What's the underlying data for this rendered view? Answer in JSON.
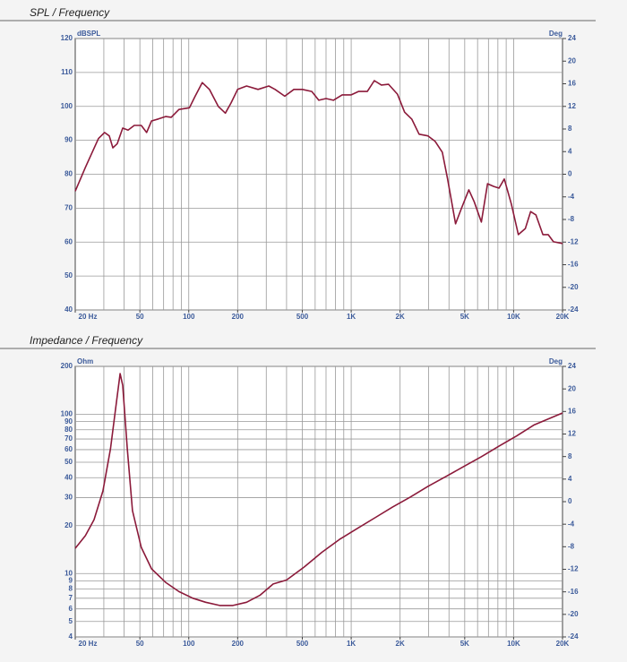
{
  "chart_data": [
    {
      "type": "line",
      "title": "SPL / Frequency",
      "y_label": "dBSPL",
      "y2_label": "Deg",
      "xscale": "log",
      "yscale": "linear",
      "color": "#8b1a3a",
      "grid": true,
      "x": [
        20,
        23.1,
        27.8,
        30.3,
        32.4,
        34.1,
        36.3,
        39.2,
        42.3,
        46.2,
        51,
        55,
        59,
        65,
        72,
        78,
        87,
        101,
        109,
        121,
        134,
        152,
        168,
        182,
        200,
        227,
        267,
        311,
        340,
        390,
        444,
        500,
        572,
        632,
        700,
        777,
        880,
        1000,
        1109,
        1257,
        1388,
        1535,
        1698,
        1925,
        2133,
        2364,
        2620,
        2970,
        3286,
        3640,
        3923,
        4390,
        4789,
        5302,
        5718,
        6330,
        6909,
        7543,
        8126,
        8760,
        9680,
        10700,
        11810,
        12730,
        13720,
        15150,
        16330,
        17600,
        20000
      ],
      "values": [
        75,
        82,
        90.5,
        92.3,
        91.3,
        87.8,
        89,
        93.6,
        93,
        94.4,
        94.4,
        92.3,
        95.7,
        96.3,
        97,
        96.8,
        99.1,
        99.6,
        102.8,
        107,
        105,
        100,
        98,
        101,
        105,
        106,
        105,
        106,
        105,
        103,
        105,
        105,
        104.4,
        101.8,
        102.3,
        101.8,
        103.4,
        103.4,
        104.4,
        104.4,
        107.6,
        106.3,
        106.5,
        103.6,
        98.3,
        96.2,
        91.8,
        91.3,
        89.7,
        86.5,
        78.6,
        65.4,
        70.1,
        75.4,
        71.9,
        65.9,
        77.2,
        76.4,
        75.9,
        78.6,
        71.2,
        62.2,
        64,
        69,
        68,
        62.2,
        62.2,
        60.1,
        59.6
      ],
      "xlim": [
        20,
        20000
      ],
      "ylim": [
        40,
        120
      ],
      "y2lim": [
        -24,
        24
      ],
      "xticks": [
        {
          "value": 20,
          "label": "20 Hz"
        },
        50,
        100,
        200,
        500,
        {
          "value": 1000,
          "label": "1K"
        },
        {
          "value": 2000,
          "label": "2K"
        },
        {
          "value": 5000,
          "label": "5K"
        },
        {
          "value": 10000,
          "label": "10K"
        },
        {
          "value": 20000,
          "label": "20K"
        }
      ],
      "xgrid": [
        30,
        40,
        50,
        60,
        70,
        80,
        90,
        100,
        200,
        300,
        400,
        500,
        600,
        700,
        800,
        900,
        1000,
        2000,
        3000,
        4000,
        5000,
        6000,
        7000,
        8000,
        9000,
        10000
      ],
      "yticks": [
        40,
        50,
        60,
        70,
        80,
        90,
        100,
        110,
        120
      ],
      "y2ticks": [
        24,
        20,
        16,
        12,
        8,
        4,
        0,
        -4,
        -8,
        -12,
        -16,
        -20,
        -24
      ]
    },
    {
      "type": "line",
      "title": "Impedance / Frequency",
      "y_label": "Ohm",
      "y2_label": "Deg",
      "xscale": "log",
      "yscale": "log",
      "color": "#8b1a3a",
      "grid": true,
      "x": [
        20,
        23.1,
        26.1,
        29.6,
        33,
        35.8,
        37.8,
        39.2,
        41.8,
        45,
        51,
        59,
        72,
        87,
        106,
        127,
        155,
        187,
        227,
        274,
        331,
        400,
        514,
        660,
        848,
        1090,
        1400,
        1800,
        2310,
        2970,
        3820,
        4900,
        6300,
        8100,
        10400,
        13400,
        20000
      ],
      "values": [
        14.4,
        17.3,
        21.8,
        33,
        61,
        118,
        180,
        152,
        61,
        24.8,
        14.6,
        10.7,
        8.8,
        7.7,
        7.0,
        6.6,
        6.3,
        6.3,
        6.6,
        7.3,
        8.6,
        9.1,
        11,
        13.6,
        16.4,
        19.2,
        22.4,
        26.2,
        30.2,
        35.3,
        40.6,
        46.8,
        54,
        63,
        73,
        86,
        102
      ],
      "xlim": [
        20,
        20000
      ],
      "ylim": [
        4,
        200
      ],
      "y2lim": [
        -24,
        24
      ],
      "xticks": [
        {
          "value": 20,
          "label": "20 Hz"
        },
        50,
        100,
        200,
        500,
        {
          "value": 1000,
          "label": "1K"
        },
        {
          "value": 2000,
          "label": "2K"
        },
        {
          "value": 5000,
          "label": "5K"
        },
        {
          "value": 10000,
          "label": "10K"
        },
        {
          "value": 20000,
          "label": "20K"
        }
      ],
      "xgrid": [
        30,
        40,
        50,
        60,
        70,
        80,
        90,
        100,
        200,
        300,
        400,
        500,
        600,
        700,
        800,
        900,
        1000,
        2000,
        3000,
        4000,
        5000,
        6000,
        7000,
        8000,
        9000,
        10000
      ],
      "yticks": [
        4,
        5,
        6,
        7,
        8,
        9,
        10,
        20,
        30,
        40,
        50,
        60,
        70,
        80,
        90,
        100,
        200
      ],
      "y2ticks": [
        24,
        20,
        16,
        12,
        8,
        4,
        0,
        -4,
        -8,
        -12,
        -16,
        -20,
        -24
      ]
    }
  ]
}
